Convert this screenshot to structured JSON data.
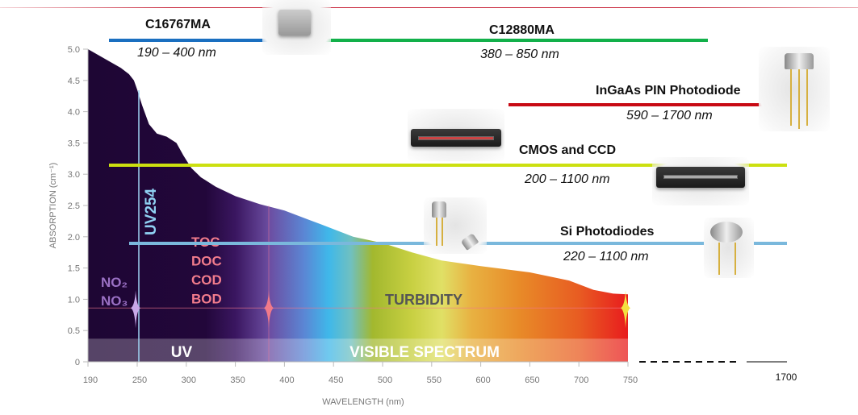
{
  "chart_data": {
    "type": "area",
    "xlabel": "WAVELENGTH (nm)",
    "ylabel": "ABSORPTION (cm⁻¹)",
    "xlim": [
      190,
      750
    ],
    "ylim": [
      0,
      5
    ],
    "xticks": [
      "190",
      "250",
      "300",
      "350",
      "400",
      "450",
      "500",
      "550",
      "600",
      "650",
      "700",
      "750"
    ],
    "yticks": [
      "0",
      "0.5",
      "1.0",
      "1.5",
      "2.0",
      "2.5",
      "3.0",
      "3.5",
      "4.0",
      "4.5",
      "5.0"
    ],
    "x_break_label": "1700",
    "curve": {
      "x": [
        190,
        210,
        230,
        240,
        246,
        250,
        255,
        262,
        270,
        280,
        290,
        297,
        305,
        315,
        330,
        350,
        375,
        400,
        437,
        470,
        500,
        530,
        560,
        600,
        650,
        690,
        715,
        735,
        750
      ],
      "y": [
        5.0,
        4.85,
        4.7,
        4.6,
        4.5,
        4.35,
        4.1,
        3.8,
        3.65,
        3.6,
        3.5,
        3.3,
        3.1,
        2.95,
        2.8,
        2.65,
        2.52,
        2.42,
        2.2,
        2.0,
        1.9,
        1.75,
        1.62,
        1.53,
        1.43,
        1.3,
        1.15,
        1.09,
        1.08
      ]
    },
    "bands": [
      {
        "label": "UV",
        "range": [
          190,
          400
        ],
        "height": 0.37
      },
      {
        "label": "VISIBLE SPECTRUM",
        "range": [
          400,
          750
        ],
        "height": 0.37
      }
    ],
    "annotations": {
      "uv254": "UV254",
      "no": [
        "NO₂",
        "NO₃"
      ],
      "organics": [
        "TOC",
        "DOC",
        "COD",
        "BOD"
      ],
      "turbidity": "TURBIDITY",
      "reference_level": 0.86
    },
    "sensors": [
      {
        "name": "C16767MA",
        "range": "190 – 400 nm",
        "color": "#1a6fc0"
      },
      {
        "name": "C12880MA",
        "range": "380 – 850 nm",
        "color": "#12b04a"
      },
      {
        "name": "InGaAs PIN Photodiode",
        "range": "590 – 1700 nm",
        "color": "#c80a14"
      },
      {
        "name": "CMOS and CCD",
        "range": "200 – 1100 nm",
        "color": "#cce010"
      },
      {
        "name": "Si Photodiodes",
        "range": "220 – 1100 nm",
        "color": "#7ab8dc"
      }
    ]
  }
}
